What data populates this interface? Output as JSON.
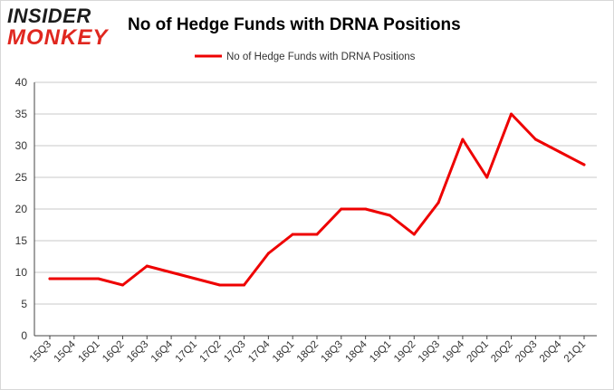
{
  "brand": {
    "line1": "INSIDER",
    "line2": "MONKEY"
  },
  "colors": {
    "series": "#ee0000",
    "grid": "#c8c8c8",
    "axis": "#444444",
    "brand_red": "#e0271f"
  },
  "chart_data": {
    "type": "line",
    "title": "No of Hedge Funds with DRNA Positions",
    "xlabel": "",
    "ylabel": "",
    "categories": [
      "15Q3",
      "15Q4",
      "16Q1",
      "16Q2",
      "16Q3",
      "16Q4",
      "17Q1",
      "17Q2",
      "17Q3",
      "17Q4",
      "18Q1",
      "18Q2",
      "18Q3",
      "18Q4",
      "19Q1",
      "19Q2",
      "19Q3",
      "19Q4",
      "20Q1",
      "20Q2",
      "20Q3",
      "20Q4",
      "21Q1"
    ],
    "series": [
      {
        "name": "No of Hedge Funds with DRNA Positions",
        "values": [
          9,
          9,
          9,
          8,
          11,
          10,
          9,
          8,
          8,
          13,
          16,
          16,
          20,
          20,
          19,
          16,
          21,
          31,
          25,
          35,
          31,
          29,
          27
        ]
      }
    ],
    "ylim": [
      0,
      40
    ],
    "yticks": [
      0,
      5,
      10,
      15,
      20,
      25,
      30,
      35,
      40
    ],
    "grid": true,
    "legend": "top-center"
  }
}
